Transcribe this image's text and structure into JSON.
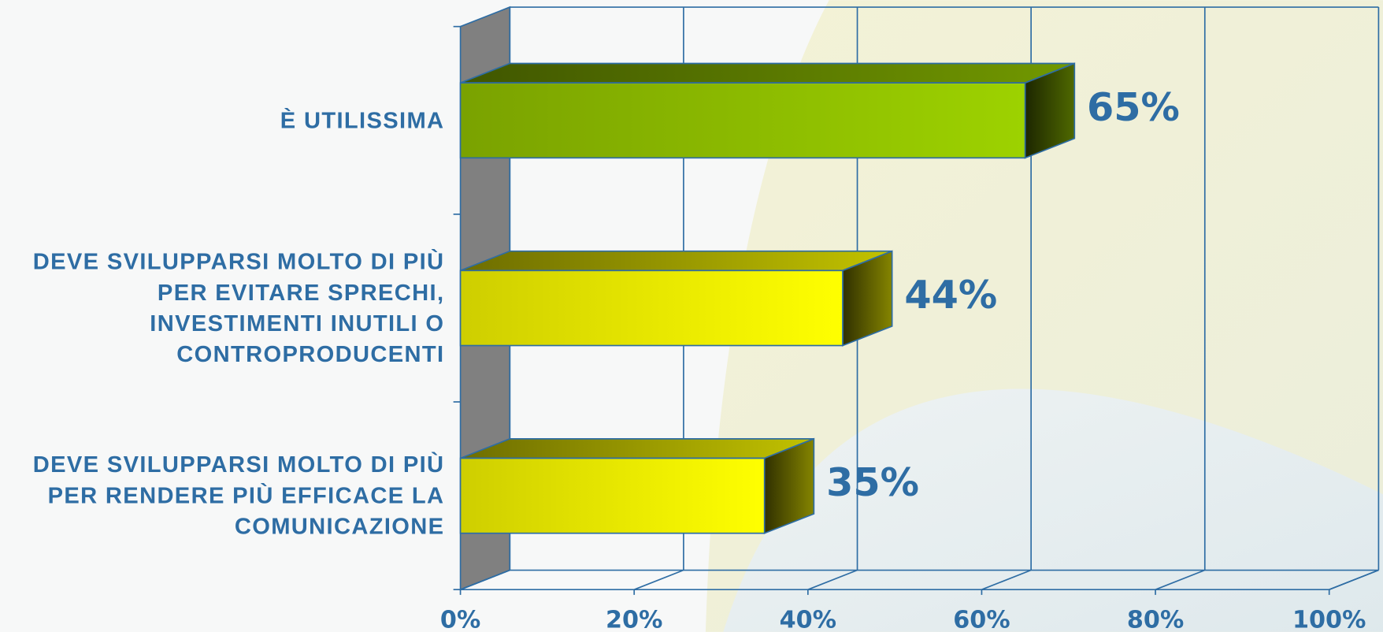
{
  "chart_data": {
    "type": "bar3d_horizontal",
    "categories": [
      "È UTILISSIMA",
      "DEVE SVILUPPARSI MOLTO DI PIÙ PER EVITARE SPRECHI, INVESTIMENTI INUTILI O CONTROPRODUCENTI",
      "DEVE SVILUPPARSI MOLTO DI PIÙ PER RENDERE PIÙ EFFICACE LA COMUNICAZIONE"
    ],
    "values": [
      65,
      44,
      35
    ],
    "value_labels": [
      "65%",
      "44%",
      "35%"
    ],
    "colors": [
      "#8fbf00",
      "#f2f200",
      "#f2f200"
    ],
    "xlim": [
      0,
      100
    ],
    "xticks": [
      {
        "value": 0,
        "label": "0%"
      },
      {
        "value": 20,
        "label": "20%"
      },
      {
        "value": 40,
        "label": "40%"
      },
      {
        "value": 60,
        "label": "60%"
      },
      {
        "value": 80,
        "label": "80%"
      },
      {
        "value": 100,
        "label": "100%"
      }
    ],
    "grid": true
  }
}
